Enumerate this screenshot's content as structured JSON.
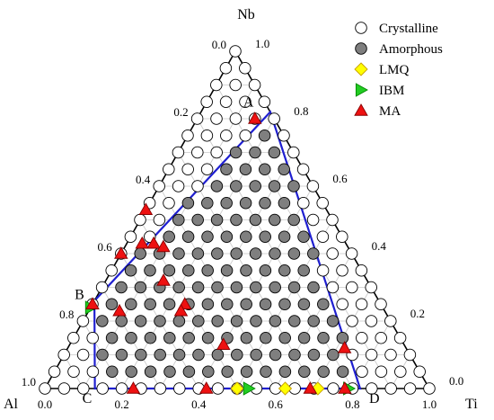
{
  "chart_data": {
    "type": "scatter",
    "coordinate_system": "ternary",
    "axis_labels": {
      "top": "Nb",
      "right": "Ti",
      "left": "Al"
    },
    "grid": true,
    "legend_placement": "top-right",
    "tick_labels": {
      "nb": [
        "0.0",
        "0.2",
        "0.4",
        "0.6",
        "0.8",
        "1.0"
      ],
      "ti": [
        "1.0",
        "0.8",
        "0.6",
        "0.4",
        "0.2",
        "0.0"
      ],
      "al": [
        "0.0",
        "0.2",
        "0.4",
        "0.6",
        "0.8",
        "1.0"
      ]
    },
    "region_boundary": {
      "label_names": [
        "A",
        "B",
        "C",
        "D"
      ],
      "vertices": [
        {
          "name": "A",
          "nb": 0.82,
          "ti": 0.18
        },
        {
          "name": "B",
          "nb": 0.26,
          "ti": 0.0
        },
        {
          "name": "C",
          "nb": 0.0,
          "ti": 0.13
        },
        {
          "name": "D",
          "nb": 0.0,
          "ti": 0.82
        }
      ],
      "color": "#1f1fd0"
    },
    "markers": {
      "Crystalline": {
        "fill": "#ffffff",
        "stroke": "#000000",
        "shape": "circle"
      },
      "Amorphous": {
        "fill": "#7f7f7f",
        "stroke": "#000000",
        "shape": "circle"
      },
      "LMQ": {
        "fill": "#ffff00",
        "stroke": "#c8a000",
        "shape": "diamond"
      },
      "IBM": {
        "fill": "#22cc22",
        "stroke": "#008800",
        "shape": "triangle-right"
      },
      "MA": {
        "fill": "#ee1111",
        "stroke": "#880000",
        "shape": "triangle-up"
      }
    },
    "grid_series": {
      "note": "compositions sampled on a 0.05 grid; Amorphous inside ABCD boundary, Crystalline outside"
    },
    "series": [
      {
        "name": "Crystalline",
        "points": []
      },
      {
        "name": "Amorphous",
        "points": []
      },
      {
        "name": "LMQ",
        "points": [
          {
            "nb": 0.0,
            "ti": 0.5
          },
          {
            "nb": 0.0,
            "ti": 0.625
          },
          {
            "nb": 0.0,
            "ti": 0.71
          }
        ]
      },
      {
        "name": "IBM",
        "points": [
          {
            "nb": 0.0,
            "ti": 0.53
          },
          {
            "nb": 0.0,
            "ti": 0.79
          },
          {
            "nb": 0.24,
            "ti": 0.0
          }
        ]
      },
      {
        "name": "MA",
        "points": [
          {
            "nb": 0.8,
            "ti": 0.15
          },
          {
            "nb": 0.53,
            "ti": 0.0
          },
          {
            "nb": 0.43,
            "ti": 0.04
          },
          {
            "nb": 0.43,
            "ti": 0.07
          },
          {
            "nb": 0.42,
            "ti": 0.1
          },
          {
            "nb": 0.4,
            "ti": 0.0
          },
          {
            "nb": 0.32,
            "ti": 0.15
          },
          {
            "nb": 0.25,
            "ti": 0.0
          },
          {
            "nb": 0.23,
            "ti": 0.08
          },
          {
            "nb": 0.25,
            "ti": 0.24
          },
          {
            "nb": 0.23,
            "ti": 0.24
          },
          {
            "nb": 0.13,
            "ti": 0.4
          },
          {
            "nb": 0.12,
            "ti": 0.72
          },
          {
            "nb": 0.0,
            "ti": 0.23
          },
          {
            "nb": 0.0,
            "ti": 0.42
          },
          {
            "nb": 0.0,
            "ti": 0.69
          },
          {
            "nb": 0.0,
            "ti": 0.78
          }
        ]
      }
    ],
    "legend": [
      {
        "label": "Crystalline",
        "marker": "Crystalline"
      },
      {
        "label": "Amorphous",
        "marker": "Amorphous"
      },
      {
        "label": "LMQ",
        "marker": "LMQ"
      },
      {
        "label": "IBM",
        "marker": "IBM"
      },
      {
        "label": "MA",
        "marker": "MA"
      }
    ]
  }
}
